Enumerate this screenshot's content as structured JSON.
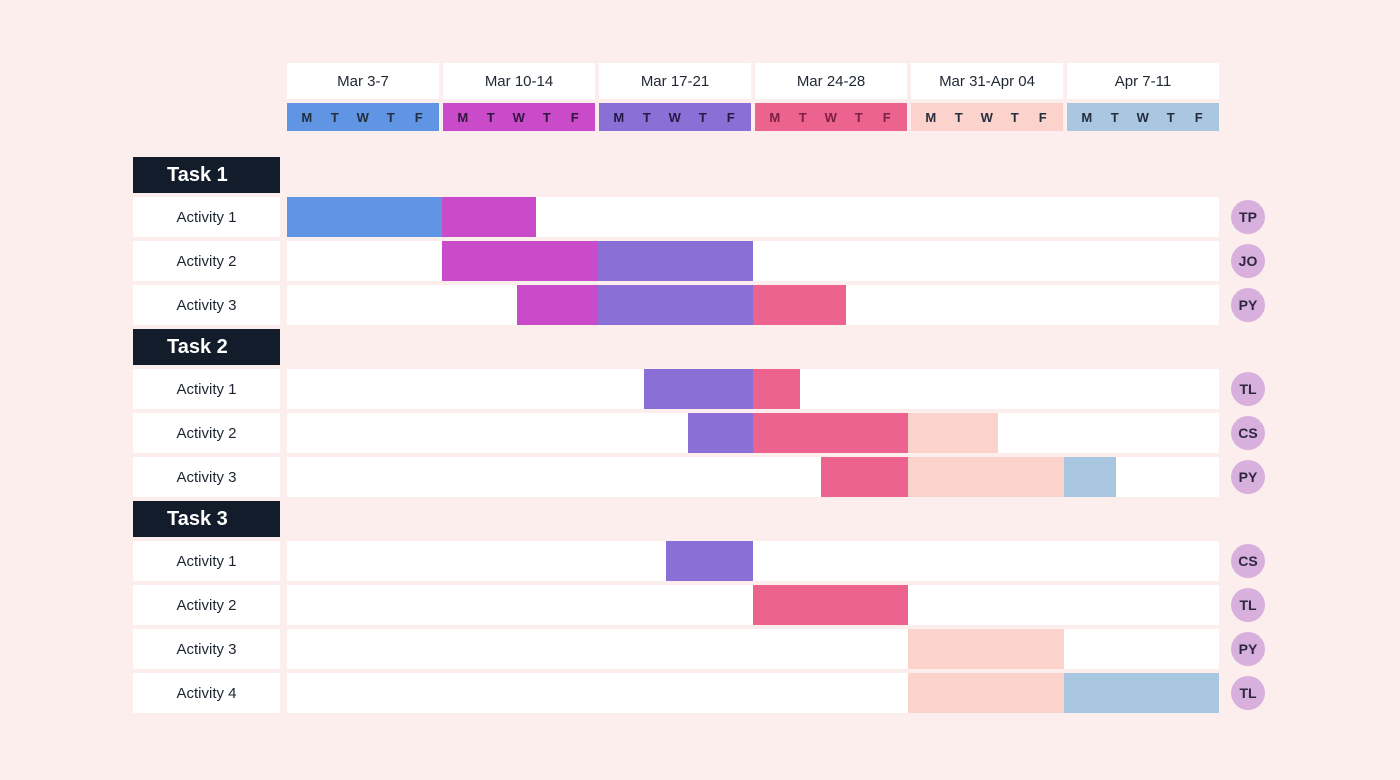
{
  "theme": {
    "page_bg": "#fdeeee",
    "task_header_bg": "#131c2b",
    "row_bg": "#ffffff",
    "badge_bg": "#d8b0de",
    "badge_text": "#2f2640"
  },
  "chart_data": {
    "type": "bar",
    "subtype": "gantt",
    "title": "",
    "total_days": 30,
    "days": [
      "M",
      "T",
      "W",
      "T",
      "F"
    ],
    "weeks": [
      {
        "label": "Mar 3-7",
        "color": "#5f95e2",
        "day_text_color": "#252e3f"
      },
      {
        "label": "Mar 10-14",
        "color": "#c94bc9",
        "day_text_color": "#321440"
      },
      {
        "label": "Mar 17-21",
        "color": "#8a70d6",
        "day_text_color": "#241a44"
      },
      {
        "label": "Mar 24-28",
        "color": "#ed6390",
        "day_text_color": "#7c2040"
      },
      {
        "label": "Mar 31-Apr 04",
        "color": "#fcd2cc",
        "day_text_color": "#252e3f"
      },
      {
        "label": "Apr 7-11",
        "color": "#aac7e2",
        "day_text_color": "#252e3f"
      }
    ],
    "palette": {
      "blue": "#5f95e2",
      "magenta": "#c94bc9",
      "purple": "#8a70d6",
      "rose": "#ed6390",
      "palepink": "#fcd2cc",
      "paleblue": "#aac7e2"
    },
    "tasks": [
      {
        "name": "Task 1",
        "activities": [
          {
            "label": "Activity 1",
            "assignee": "TP",
            "bars": [
              {
                "start": 0,
                "days": 5,
                "color": "blue"
              },
              {
                "start": 5,
                "days": 3,
                "color": "magenta"
              }
            ]
          },
          {
            "label": "Activity 2",
            "assignee": "JO",
            "bars": [
              {
                "start": 5,
                "days": 5,
                "color": "magenta"
              },
              {
                "start": 10,
                "days": 5,
                "color": "purple"
              }
            ]
          },
          {
            "label": "Activity 3",
            "assignee": "PY",
            "bars": [
              {
                "start": 7.4,
                "days": 2.6,
                "color": "magenta"
              },
              {
                "start": 10,
                "days": 5,
                "color": "purple"
              },
              {
                "start": 15,
                "days": 3,
                "color": "rose"
              }
            ]
          }
        ]
      },
      {
        "name": "Task 2",
        "activities": [
          {
            "label": "Activity 1",
            "assignee": "TL",
            "bars": [
              {
                "start": 11.5,
                "days": 3.5,
                "color": "purple"
              },
              {
                "start": 15,
                "days": 1.5,
                "color": "rose"
              }
            ]
          },
          {
            "label": "Activity 2",
            "assignee": "CS",
            "bars": [
              {
                "start": 12.9,
                "days": 2.1,
                "color": "purple"
              },
              {
                "start": 15,
                "days": 5,
                "color": "rose"
              },
              {
                "start": 20,
                "days": 2.9,
                "color": "palepink"
              }
            ]
          },
          {
            "label": "Activity 3",
            "assignee": "PY",
            "bars": [
              {
                "start": 17.2,
                "days": 2.8,
                "color": "rose"
              },
              {
                "start": 20,
                "days": 5,
                "color": "palepink"
              },
              {
                "start": 25,
                "days": 1.7,
                "color": "paleblue"
              }
            ]
          }
        ]
      },
      {
        "name": "Task 3",
        "activities": [
          {
            "label": "Activity 1",
            "assignee": "CS",
            "bars": [
              {
                "start": 12.2,
                "days": 2.8,
                "color": "purple"
              }
            ]
          },
          {
            "label": "Activity 2",
            "assignee": "TL",
            "bars": [
              {
                "start": 15,
                "days": 5,
                "color": "rose"
              }
            ]
          },
          {
            "label": "Activity 3",
            "assignee": "PY",
            "bars": [
              {
                "start": 20,
                "days": 5,
                "color": "palepink"
              }
            ]
          },
          {
            "label": "Activity 4",
            "assignee": "TL",
            "bars": [
              {
                "start": 20,
                "days": 5,
                "color": "palepink"
              },
              {
                "start": 25,
                "days": 5,
                "color": "paleblue"
              }
            ]
          }
        ]
      }
    ]
  }
}
